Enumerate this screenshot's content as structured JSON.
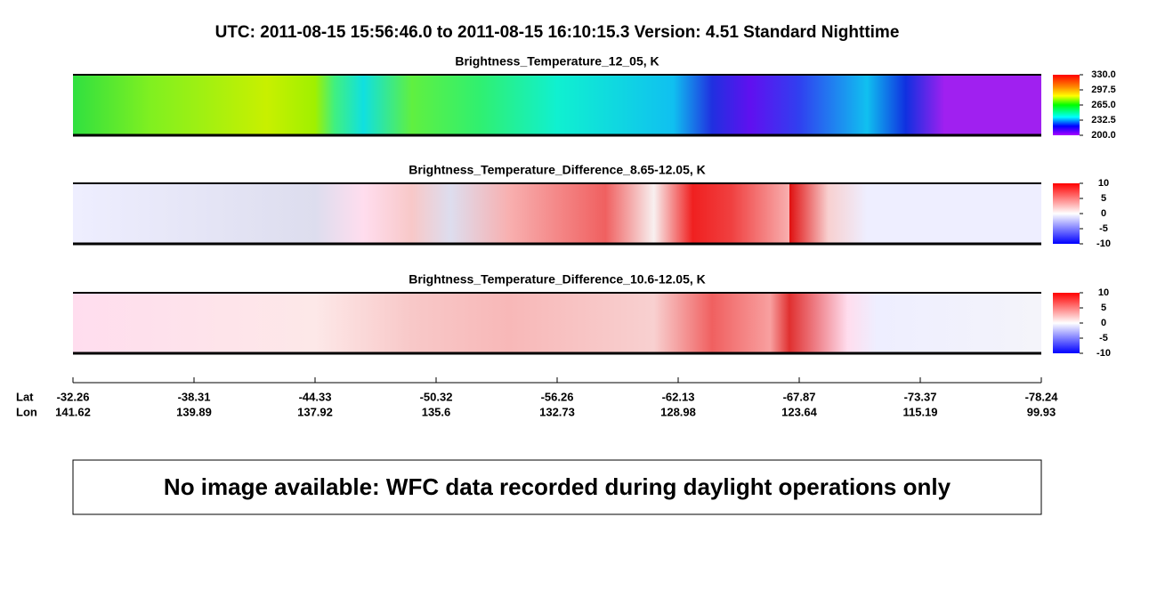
{
  "header": {
    "title": "UTC:  2011-08-15   15:56:46.0  to  2011-08-15   16:10:15.3    Version: 4.51  Standard Nighttime"
  },
  "panels": [
    {
      "title": "Brightness_Temperature_12_05, K",
      "colorbar": {
        "ticks": [
          {
            "value": 330,
            "label": "330.0"
          },
          {
            "value": 297.5,
            "label": "297.5"
          },
          {
            "value": 265,
            "label": "265.0"
          },
          {
            "value": 232.5,
            "label": "232.5"
          },
          {
            "value": 200,
            "label": "200.0"
          }
        ]
      }
    },
    {
      "title": "Brightness_Temperature_Difference_8.65-12.05, K",
      "colorbar": {
        "ticks": [
          10,
          5,
          0,
          -5,
          -10
        ]
      }
    },
    {
      "title": "Brightness_Temperature_Difference_10.6-12.05, K",
      "colorbar": {
        "ticks": [
          10,
          5,
          0,
          -5,
          -10
        ]
      }
    }
  ],
  "axis": {
    "lat_label": "Lat",
    "lon_label": "Lon",
    "lat": [
      -32.26,
      -38.31,
      -44.33,
      -50.32,
      -56.26,
      -62.13,
      -67.87,
      -73.37,
      -78.24
    ],
    "lon": [
      141.62,
      139.89,
      137.92,
      135.6,
      132.73,
      128.98,
      123.64,
      115.19,
      99.93
    ]
  },
  "notice": "No image available: WFC data recorded during daylight operations only"
}
